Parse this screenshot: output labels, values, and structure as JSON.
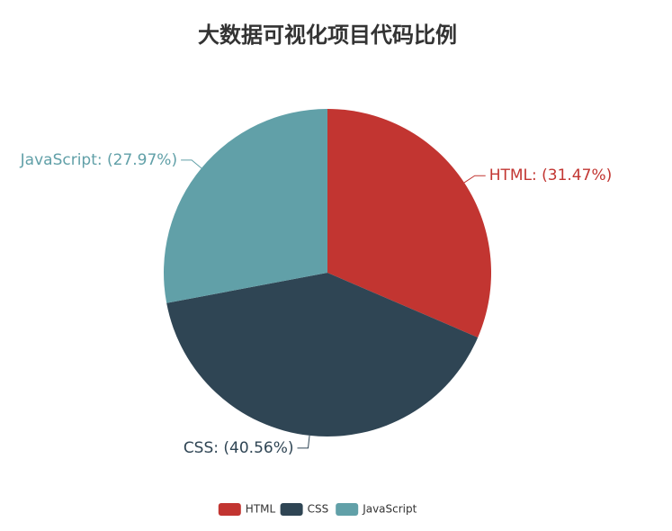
{
  "chart_data": {
    "type": "pie",
    "title": "大数据可视化项目代码比例",
    "categories": [
      "HTML",
      "CSS",
      "JavaScript"
    ],
    "values": [
      31.47,
      40.56,
      27.97
    ],
    "value_labels": [
      "HTML: (31.47%)",
      "CSS: (40.56%)",
      "JavaScript: (27.97%)"
    ],
    "colors": [
      "#c23531",
      "#2f4554",
      "#61a0a8"
    ],
    "legend": "bottom"
  }
}
